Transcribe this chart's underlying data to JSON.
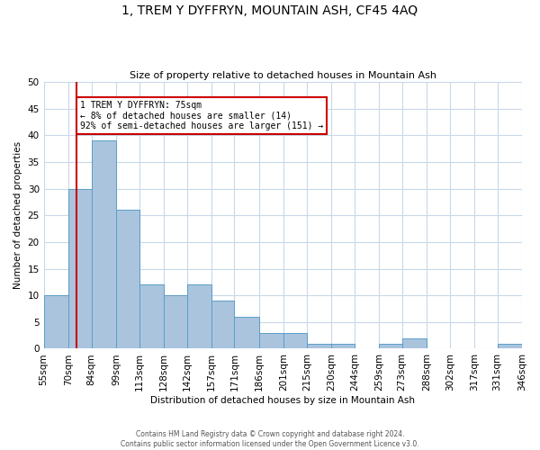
{
  "title": "1, TREM Y DYFFRYN, MOUNTAIN ASH, CF45 4AQ",
  "subtitle": "Size of property relative to detached houses in Mountain Ash",
  "xlabel": "Distribution of detached houses by size in Mountain Ash",
  "ylabel": "Number of detached properties",
  "bin_edges": [
    55,
    70,
    84,
    99,
    113,
    128,
    142,
    157,
    171,
    186,
    201,
    215,
    230,
    244,
    259,
    273,
    288,
    302,
    317,
    331,
    346
  ],
  "counts": [
    10,
    30,
    39,
    26,
    12,
    10,
    12,
    9,
    6,
    3,
    3,
    1,
    1,
    0,
    1,
    2,
    0,
    0,
    0,
    1
  ],
  "ylim": [
    0,
    50
  ],
  "bar_color": "#aac4de",
  "bar_edge_color": "#5a9ec9",
  "vline_x": 75,
  "vline_color": "#cc0000",
  "annotation_text": "1 TREM Y DYFFRYN: 75sqm\n← 8% of detached houses are smaller (14)\n92% of semi-detached houses are larger (151) →",
  "annotation_box_color": "#ffffff",
  "annotation_box_edge_color": "#cc0000",
  "footer_text": "Contains HM Land Registry data © Crown copyright and database right 2024.\nContains public sector information licensed under the Open Government Licence v3.0.",
  "bg_color": "#ffffff",
  "grid_color": "#c8d8e8",
  "tick_labels": [
    "55sqm",
    "70sqm",
    "84sqm",
    "99sqm",
    "113sqm",
    "128sqm",
    "142sqm",
    "157sqm",
    "171sqm",
    "186sqm",
    "201sqm",
    "215sqm",
    "230sqm",
    "244sqm",
    "259sqm",
    "273sqm",
    "288sqm",
    "302sqm",
    "317sqm",
    "331sqm",
    "346sqm"
  ]
}
